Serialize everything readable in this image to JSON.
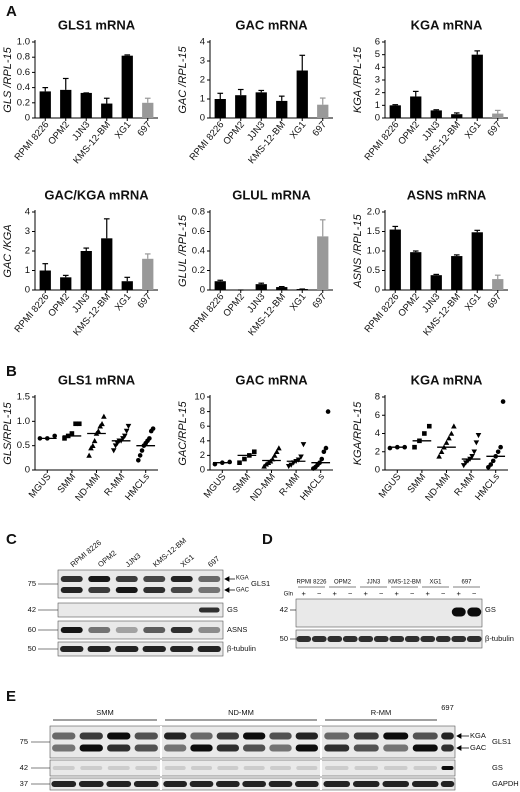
{
  "panel_labels": [
    "A",
    "B",
    "C",
    "D",
    "E"
  ],
  "chart_data": [
    {
      "type": "bar",
      "title": "GLS1 mRNA",
      "y_label": "GLS /RPL-15",
      "categories": [
        "RPMI 8226",
        "OPM2",
        "JJN3",
        "KMS-12-BM",
        "XG1",
        "697"
      ],
      "values": [
        0.35,
        0.37,
        0.33,
        0.19,
        0.82,
        0.2
      ],
      "errors": [
        0.05,
        0.15,
        0,
        0.07,
        0.01,
        0.06
      ],
      "colors": [
        "#000000",
        "#000000",
        "#000000",
        "#000000",
        "#000000",
        "#999999"
      ],
      "ylim": [
        0,
        1
      ],
      "yticks": [
        0,
        0.2,
        0.4,
        0.6,
        0.8,
        {
          "value": 1,
          "label": "1.0"
        }
      ]
    },
    {
      "type": "bar",
      "title": "GAC mRNA",
      "y_label": "GAC /RPL-15",
      "categories": [
        "RPMI 8226",
        "OPM2",
        "JJN3",
        "KMS-12-BM",
        "XG1",
        "697"
      ],
      "values": [
        1.0,
        1.2,
        1.35,
        0.9,
        2.5,
        0.7
      ],
      "errors": [
        0.3,
        0.3,
        0.1,
        0.25,
        0.8,
        0.35
      ],
      "colors": [
        "#000000",
        "#000000",
        "#000000",
        "#000000",
        "#000000",
        "#999999"
      ],
      "ylim": [
        0,
        4
      ],
      "yticks": [
        0,
        1,
        2,
        3,
        4
      ]
    },
    {
      "type": "bar",
      "title": "KGA mRNA",
      "y_label": "KGA /RPL-15",
      "categories": [
        "RPMI 8226",
        "OPM2",
        "JJN3",
        "KMS-12-BM",
        "XG1",
        "697"
      ],
      "values": [
        1.0,
        1.7,
        0.6,
        0.3,
        5.0,
        0.35
      ],
      "errors": [
        0.05,
        0.4,
        0.05,
        0.1,
        0.3,
        0.25
      ],
      "colors": [
        "#000000",
        "#000000",
        "#000000",
        "#000000",
        "#000000",
        "#999999"
      ],
      "ylim": [
        0,
        6
      ],
      "yticks": [
        0,
        1,
        2,
        3,
        4,
        5,
        6
      ]
    },
    {
      "type": "bar",
      "title": "GAC/KGA mRNA",
      "y_label": "GAC /KGA",
      "categories": [
        "RPMI 8226",
        "OPM2",
        "JJN3",
        "KMS-12-BM",
        "XG1",
        "697"
      ],
      "values": [
        1.0,
        0.65,
        2.0,
        2.65,
        0.45,
        1.6
      ],
      "errors": [
        0.35,
        0.1,
        0.15,
        1.0,
        0.2,
        0.25
      ],
      "colors": [
        "#000000",
        "#000000",
        "#000000",
        "#000000",
        "#000000",
        "#999999"
      ],
      "ylim": [
        0,
        4
      ],
      "yticks": [
        0,
        1,
        2,
        3,
        4
      ]
    },
    {
      "type": "bar",
      "title": "GLUL mRNA",
      "y_label": "GLUL /RPL-15",
      "categories": [
        "RPMI 8226",
        "OPM2",
        "JJN3",
        "KMS-12-BM",
        "XG1",
        "697"
      ],
      "values": [
        0.09,
        0,
        0.06,
        0.03,
        0.01,
        0.55
      ],
      "errors": [
        0.01,
        0,
        0.01,
        0.005,
        0,
        0.17
      ],
      "colors": [
        "#000000",
        "#000000",
        "#000000",
        "#000000",
        "#000000",
        "#999999"
      ],
      "ylim": [
        0,
        0.8
      ],
      "yticks": [
        0,
        0.2,
        0.4,
        0.6,
        0.8
      ]
    },
    {
      "type": "bar",
      "title": "ASNS mRNA",
      "y_label": "ASNS /RPL-15",
      "categories": [
        "RPMI 8226",
        "OPM2",
        "JJN3",
        "KMS-12-BM",
        "XG1",
        "697"
      ],
      "values": [
        1.55,
        0.97,
        0.38,
        0.87,
        1.48,
        0.28
      ],
      "errors": [
        0.08,
        0.03,
        0.02,
        0.03,
        0.05,
        0.1
      ],
      "colors": [
        "#000000",
        "#000000",
        "#000000",
        "#000000",
        "#000000",
        "#999999"
      ],
      "ylim": [
        0,
        2
      ],
      "yticks": [
        0,
        0.5,
        {
          "value": 1,
          "label": "1.0"
        },
        1.5,
        {
          "value": 2,
          "label": "2.0"
        }
      ]
    },
    {
      "type": "scatter",
      "title": "GLS1 mRNA",
      "y_label": "GLS/RPL-15",
      "categories": [
        "MGUS",
        "SMM",
        "ND-MM",
        "R-MM",
        "HMCLs"
      ],
      "markers": [
        "circle",
        "square",
        "triangle",
        "triangle-down",
        "circle"
      ],
      "values": [
        [
          0.65,
          0.65,
          0.7
        ],
        [
          0.65,
          0.7,
          0.75,
          0.95,
          0.95
        ],
        [
          0.3,
          0.45,
          0.5,
          0.6,
          0.75,
          0.8,
          0.9,
          0.95,
          1.1
        ],
        [
          0.4,
          0.5,
          0.55,
          0.6,
          0.6,
          0.65,
          0.7,
          0.8,
          0.9
        ],
        [
          0.2,
          0.3,
          0.4,
          0.5,
          0.55,
          0.6,
          0.65,
          0.8,
          0.85
        ]
      ],
      "medians": [
        0.65,
        0.7,
        0.75,
        0.6,
        0.5
      ],
      "ylim": [
        0,
        1.5
      ],
      "yticks": [
        0,
        0.5,
        {
          "value": 1,
          "label": "1.0"
        },
        1.5
      ]
    },
    {
      "type": "scatter",
      "title": "GAC mRNA",
      "y_label": "GAC/RPL-15",
      "categories": [
        "MGUS",
        "SMM",
        "ND-MM",
        "R-MM",
        "HMCLs"
      ],
      "markers": [
        "circle",
        "square",
        "triangle",
        "triangle-down",
        "circle"
      ],
      "values": [
        [
          0.8,
          1.0,
          1.1
        ],
        [
          1.0,
          1.5,
          2.0,
          2.5
        ],
        [
          0.5,
          0.8,
          1.0,
          1.2,
          1.5,
          2.0,
          2.5,
          3.0
        ],
        [
          0.5,
          0.7,
          1.0,
          1.2,
          1.4,
          1.8,
          3.5
        ],
        [
          0.2,
          0.4,
          0.7,
          1.0,
          1.5,
          2.5,
          3.0,
          8.0
        ]
      ],
      "medians": [
        1.0,
        2.0,
        1.3,
        1.2,
        1.0
      ],
      "ylim": [
        0,
        10
      ],
      "yticks": [
        0,
        2,
        4,
        6,
        8,
        10
      ]
    },
    {
      "type": "scatter",
      "title": "KGA mRNA",
      "y_label": "KGA/RPL-15",
      "categories": [
        "MGUS",
        "SMM",
        "ND-MM",
        "R-MM",
        "HMCLs"
      ],
      "markers": [
        "circle",
        "square",
        "triangle",
        "triangle-down",
        "circle"
      ],
      "values": [
        [
          2.4,
          2.5,
          2.5
        ],
        [
          2.5,
          3.2,
          4.0,
          4.8
        ],
        [
          1.5,
          2.0,
          2.5,
          3.0,
          3.5,
          4.0,
          4.8
        ],
        [
          0.5,
          0.8,
          1.0,
          1.2,
          1.5,
          2.0,
          3.0,
          3.8
        ],
        [
          0.3,
          0.6,
          1.0,
          1.5,
          2.0,
          2.5,
          7.5
        ]
      ],
      "medians": [
        2.5,
        3.2,
        2.5,
        1.2,
        1.5
      ],
      "ylim": [
        0,
        8
      ],
      "yticks": [
        0,
        2,
        4,
        6,
        8
      ]
    }
  ],
  "blots": {
    "C": {
      "lanes": [
        "RPMI 8226",
        "OPM2",
        "JJN3",
        "KMS-12-BM",
        "XG1",
        "697"
      ],
      "markers": [
        75,
        42,
        60,
        50
      ],
      "bands": [
        "KGA",
        "GAC"
      ],
      "proteins": [
        "GLS1",
        "GS",
        "ASNS",
        "β-tubulin"
      ]
    },
    "D": {
      "lanes": [
        "RPMI 8226",
        "OPM2",
        "JJN3",
        "KMS-12-BM",
        "XG1",
        "697"
      ],
      "gln_label": "Gln",
      "gln": [
        "+",
        "−",
        "+",
        "−",
        "+",
        "−",
        "+",
        "−",
        "+",
        "−",
        "+",
        "−"
      ],
      "markers": [
        42,
        50
      ],
      "proteins": [
        "GS",
        "β-tubulin"
      ]
    },
    "E": {
      "groups": [
        "SMM",
        "ND-MM",
        "R-MM",
        "697"
      ],
      "markers": [
        75,
        42,
        37
      ],
      "bands": [
        "KGA",
        "GAC"
      ],
      "proteins": [
        "GLS1",
        "GS",
        "GAPDH"
      ]
    }
  }
}
